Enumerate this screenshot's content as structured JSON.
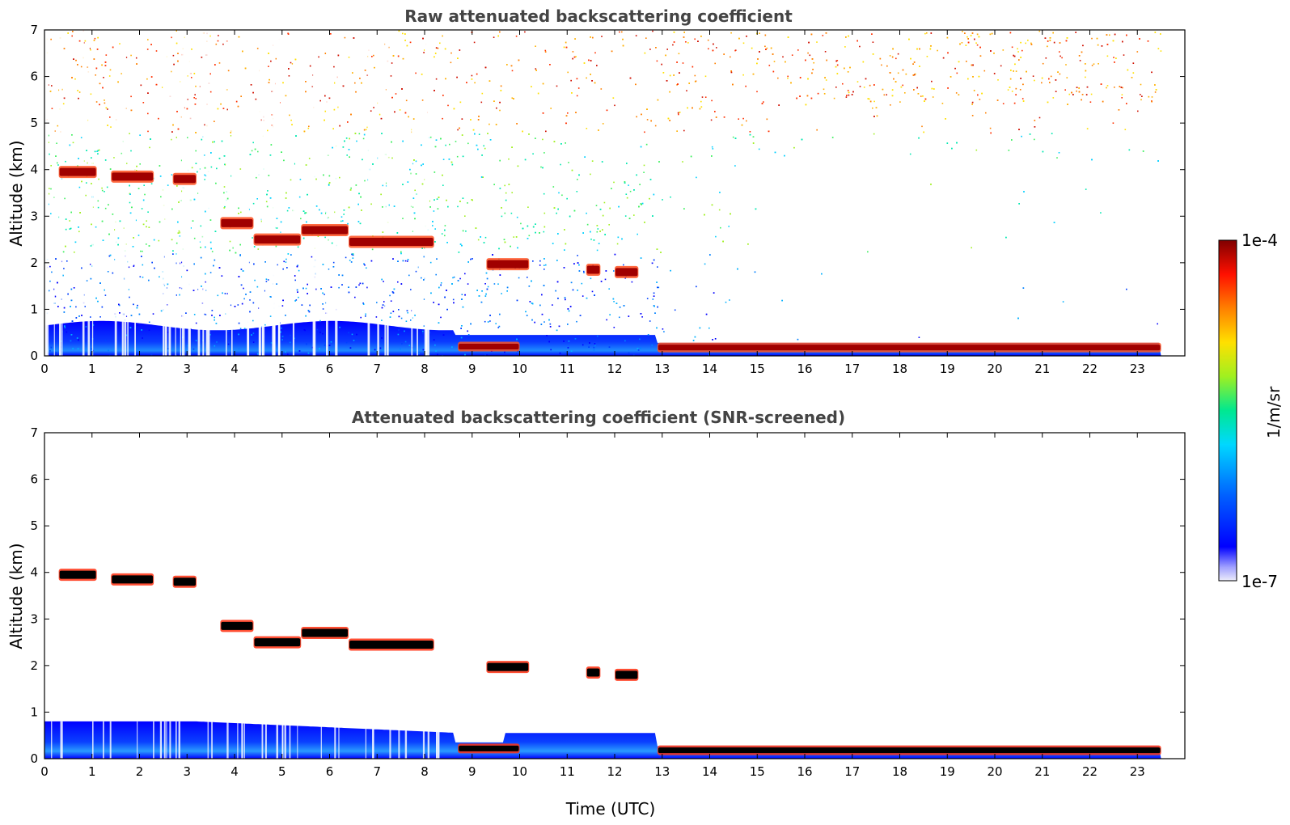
{
  "chart_data": [
    {
      "type": "heatmap",
      "title": "Raw attenuated backscattering coefficient",
      "xlabel": "",
      "ylabel": "Altitude (km)",
      "xlim": [
        0,
        24
      ],
      "ylim": [
        0,
        7
      ],
      "x_ticks": [
        0,
        1,
        2,
        3,
        4,
        5,
        6,
        7,
        8,
        9,
        10,
        11,
        12,
        13,
        14,
        15,
        16,
        17,
        18,
        19,
        20,
        21,
        22,
        23
      ],
      "y_ticks": [
        0,
        1,
        2,
        3,
        4,
        5,
        6,
        7
      ],
      "data_end_time": 23.5,
      "layers": [
        {
          "t_start": 0.3,
          "t_end": 1.1,
          "alt_km": 3.95,
          "level": "1e-4"
        },
        {
          "t_start": 1.4,
          "t_end": 2.3,
          "alt_km": 3.85,
          "level": "1e-4"
        },
        {
          "t_start": 2.7,
          "t_end": 3.2,
          "alt_km": 3.8,
          "level": "1e-4"
        },
        {
          "t_start": 3.7,
          "t_end": 4.4,
          "alt_km": 2.85,
          "level": "1e-4"
        },
        {
          "t_start": 4.4,
          "t_end": 5.4,
          "alt_km": 2.5,
          "level": "1e-4"
        },
        {
          "t_start": 5.4,
          "t_end": 6.4,
          "alt_km": 2.7,
          "level": "1e-4"
        },
        {
          "t_start": 6.4,
          "t_end": 8.2,
          "alt_km": 2.45,
          "level": "1e-4"
        },
        {
          "t_start": 9.3,
          "t_end": 10.2,
          "alt_km": 1.97,
          "level": "1e-4"
        },
        {
          "t_start": 11.4,
          "t_end": 11.7,
          "alt_km": 1.85,
          "level": "1e-4"
        },
        {
          "t_start": 12.0,
          "t_end": 12.5,
          "alt_km": 1.8,
          "level": "1e-4"
        },
        {
          "t_start": 8.7,
          "t_end": 10.0,
          "alt_km": 0.2,
          "level": "1e-4"
        },
        {
          "t_start": 12.9,
          "t_end": 23.5,
          "alt_km": 0.18,
          "level": "1e-4"
        }
      ]
    },
    {
      "type": "heatmap",
      "title": "Attenuated backscattering coefficient (SNR-screened)",
      "xlabel": "Time (UTC)",
      "ylabel": "Altitude (km)",
      "xlim": [
        0,
        24
      ],
      "ylim": [
        0,
        7
      ],
      "x_ticks": [
        0,
        1,
        2,
        3,
        4,
        5,
        6,
        7,
        8,
        9,
        10,
        11,
        12,
        13,
        14,
        15,
        16,
        17,
        18,
        19,
        20,
        21,
        22,
        23
      ],
      "y_ticks": [
        0,
        1,
        2,
        3,
        4,
        5,
        6,
        7
      ],
      "data_end_time": 23.5,
      "boundary_layer_top_km": 0.8,
      "layers": [
        {
          "t_start": 0.3,
          "t_end": 1.1,
          "alt_km": 3.95,
          "level": "saturated"
        },
        {
          "t_start": 1.4,
          "t_end": 2.3,
          "alt_km": 3.85,
          "level": "saturated"
        },
        {
          "t_start": 2.7,
          "t_end": 3.2,
          "alt_km": 3.8,
          "level": "saturated"
        },
        {
          "t_start": 3.7,
          "t_end": 4.4,
          "alt_km": 2.85,
          "level": "saturated"
        },
        {
          "t_start": 4.4,
          "t_end": 5.4,
          "alt_km": 2.5,
          "level": "saturated"
        },
        {
          "t_start": 5.4,
          "t_end": 6.4,
          "alt_km": 2.7,
          "level": "saturated"
        },
        {
          "t_start": 6.4,
          "t_end": 8.2,
          "alt_km": 2.45,
          "level": "saturated"
        },
        {
          "t_start": 9.3,
          "t_end": 10.2,
          "alt_km": 1.97,
          "level": "saturated"
        },
        {
          "t_start": 11.4,
          "t_end": 11.7,
          "alt_km": 1.85,
          "level": "saturated"
        },
        {
          "t_start": 12.0,
          "t_end": 12.5,
          "alt_km": 1.8,
          "level": "saturated"
        },
        {
          "t_start": 8.7,
          "t_end": 10.0,
          "alt_km": 0.22,
          "level": "saturated"
        },
        {
          "t_start": 12.9,
          "t_end": 23.5,
          "alt_km": 0.18,
          "level": "saturated"
        }
      ]
    }
  ],
  "colorbar": {
    "label": "1/m/sr",
    "max_label": "1e-4",
    "min_label": "1e-7",
    "scale": "log",
    "colors": [
      "#e6e6fa",
      "#0000ff",
      "#00c8ff",
      "#00e0a0",
      "#ffff00",
      "#ff8000",
      "#ff0000",
      "#800000"
    ]
  }
}
